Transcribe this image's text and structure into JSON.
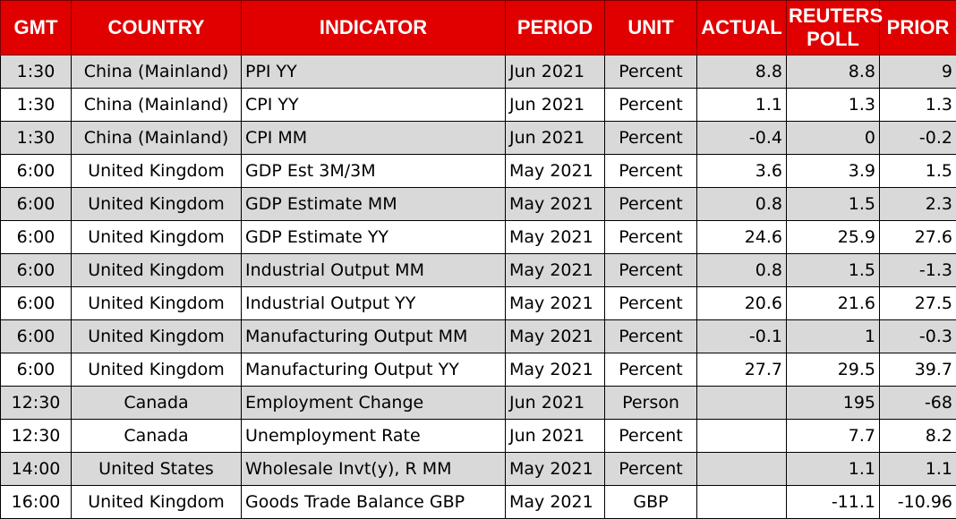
{
  "headers": {
    "gmt": "GMT",
    "country": "COUNTRY",
    "indicator": "INDICATOR",
    "period": "PERIOD",
    "unit": "UNIT",
    "actual": "ACTUAL",
    "poll_line1": "REUTERS",
    "poll_line2": "POLL",
    "prior": "PRIOR"
  },
  "colors": {
    "header_bg": "#e00000",
    "header_text": "#ffffff",
    "row_alt": "#d9d9d9",
    "row_plain": "#ffffff"
  },
  "rows": [
    {
      "gmt": "1:30",
      "country": "China (Mainland)",
      "indicator": "PPI YY",
      "period": "Jun 2021",
      "unit": "Percent",
      "actual": "8.8",
      "poll": "8.8",
      "prior": "9"
    },
    {
      "gmt": "1:30",
      "country": "China (Mainland)",
      "indicator": "CPI YY",
      "period": "Jun 2021",
      "unit": "Percent",
      "actual": "1.1",
      "poll": "1.3",
      "prior": "1.3"
    },
    {
      "gmt": "1:30",
      "country": "China (Mainland)",
      "indicator": "CPI MM",
      "period": "Jun 2021",
      "unit": "Percent",
      "actual": "-0.4",
      "poll": "0",
      "prior": "-0.2"
    },
    {
      "gmt": "6:00",
      "country": "United Kingdom",
      "indicator": "GDP Est 3M/3M",
      "period": "May 2021",
      "unit": "Percent",
      "actual": "3.6",
      "poll": "3.9",
      "prior": "1.5"
    },
    {
      "gmt": "6:00",
      "country": "United Kingdom",
      "indicator": "GDP Estimate MM",
      "period": "May 2021",
      "unit": "Percent",
      "actual": "0.8",
      "poll": "1.5",
      "prior": "2.3"
    },
    {
      "gmt": "6:00",
      "country": "United Kingdom",
      "indicator": "GDP Estimate YY",
      "period": "May 2021",
      "unit": "Percent",
      "actual": "24.6",
      "poll": "25.9",
      "prior": "27.6"
    },
    {
      "gmt": "6:00",
      "country": "United Kingdom",
      "indicator": "Industrial Output MM",
      "period": "May 2021",
      "unit": "Percent",
      "actual": "0.8",
      "poll": "1.5",
      "prior": "-1.3"
    },
    {
      "gmt": "6:00",
      "country": "United Kingdom",
      "indicator": "Industrial Output YY",
      "period": "May 2021",
      "unit": "Percent",
      "actual": "20.6",
      "poll": "21.6",
      "prior": "27.5"
    },
    {
      "gmt": "6:00",
      "country": "United Kingdom",
      "indicator": "Manufacturing Output MM",
      "period": "May 2021",
      "unit": "Percent",
      "actual": "-0.1",
      "poll": "1",
      "prior": "-0.3"
    },
    {
      "gmt": "6:00",
      "country": "United Kingdom",
      "indicator": "Manufacturing Output YY",
      "period": "May 2021",
      "unit": "Percent",
      "actual": "27.7",
      "poll": "29.5",
      "prior": "39.7"
    },
    {
      "gmt": "12:30",
      "country": "Canada",
      "indicator": "Employment Change",
      "period": "Jun 2021",
      "unit": "Person",
      "actual": "",
      "poll": "195",
      "prior": "-68"
    },
    {
      "gmt": "12:30",
      "country": "Canada",
      "indicator": "Unemployment Rate",
      "period": "Jun 2021",
      "unit": "Percent",
      "actual": "",
      "poll": "7.7",
      "prior": "8.2"
    },
    {
      "gmt": "14:00",
      "country": "United States",
      "indicator": "Wholesale Invt(y), R MM",
      "period": "May 2021",
      "unit": "Percent",
      "actual": "",
      "poll": "1.1",
      "prior": "1.1"
    },
    {
      "gmt": "16:00",
      "country": "United Kingdom",
      "indicator": "Goods Trade Balance GBP",
      "period": "May 2021",
      "unit": "GBP",
      "actual": "",
      "poll": "-11.1",
      "prior": "-10.96"
    }
  ]
}
